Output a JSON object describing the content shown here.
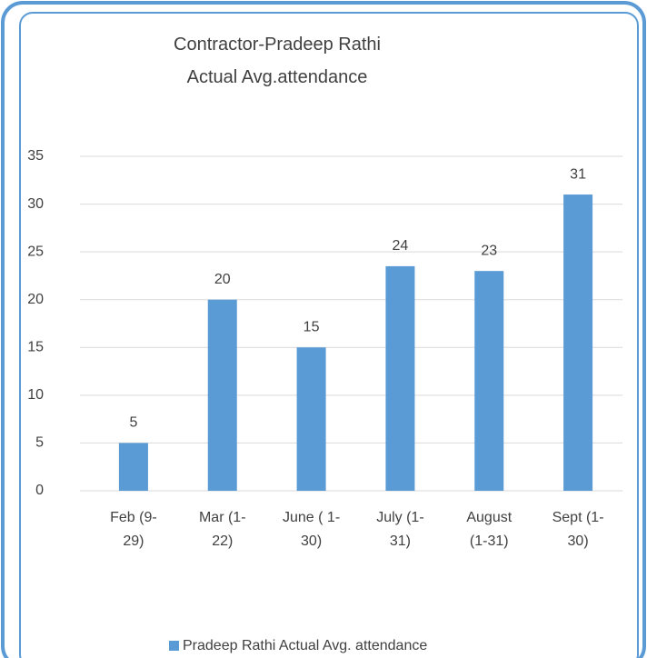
{
  "chart_data": {
    "type": "bar",
    "title": "Contractor-Pradeep Rathi Actual Avg.attendance",
    "categories": [
      "Feb (9-29)",
      "Mar (1-22)",
      "June ( 1-30)",
      "July (1-31)",
      "August (1-31)",
      "Sept (1-30)"
    ],
    "series": [
      {
        "name": "Pradeep Rathi Actual Avg. attendance",
        "color": "#5b9bd5",
        "values": [
          5,
          20,
          15,
          23.5,
          23,
          31
        ],
        "value_labels": [
          "5",
          "20",
          "15",
          "24",
          "23",
          "31"
        ]
      }
    ],
    "ylim": [
      0,
      35
    ],
    "yticks": [
      0,
      5,
      10,
      15,
      20,
      25,
      30,
      35
    ],
    "grid": true,
    "legend": "bottom"
  }
}
